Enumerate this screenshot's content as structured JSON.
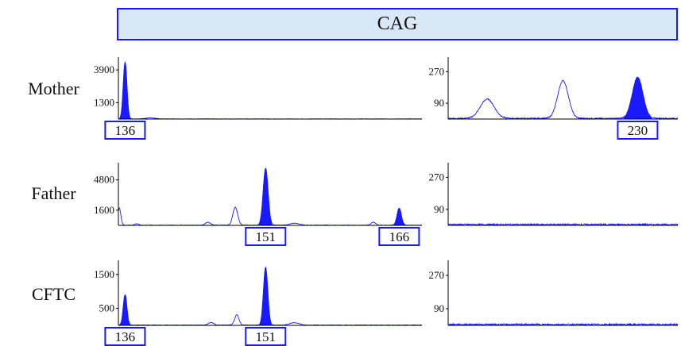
{
  "header": {
    "marker_label": "CAG"
  },
  "colors": {
    "trace": "#1a1aff",
    "band_fill": "#d9e8f6",
    "axis": "#000000"
  },
  "rows": [
    {
      "sample": "Mother"
    },
    {
      "sample": "Father"
    },
    {
      "sample": "CFTC"
    }
  ],
  "chart_data": [
    {
      "type": "area",
      "sample": "Mother",
      "panel": "left",
      "yticks": [
        3900,
        1300
      ],
      "ylim": [
        0,
        4600
      ],
      "xlim": [
        0,
        100
      ],
      "peaks": [
        {
          "x": 2.2,
          "height": 4500,
          "width": 0.6,
          "filled": true
        },
        {
          "x": 10.5,
          "height": 80,
          "width": 1.6,
          "filled": false
        }
      ],
      "baseline_noise": 20,
      "allele_labels": [
        {
          "x": 2.2,
          "label": "136"
        }
      ]
    },
    {
      "type": "area",
      "sample": "Mother",
      "panel": "right",
      "yticks": [
        270,
        90
      ],
      "ylim": [
        0,
        330
      ],
      "xlim": [
        0,
        100
      ],
      "peaks": [
        {
          "x": 17,
          "height": 110,
          "width": 3,
          "filled": false
        },
        {
          "x": 50,
          "height": 215,
          "width": 2.3,
          "filled": false
        },
        {
          "x": 82.5,
          "height": 235,
          "width": 2.3,
          "filled": true
        }
      ],
      "baseline_noise": 6,
      "allele_labels": [
        {
          "x": 82.5,
          "label": "230"
        }
      ]
    },
    {
      "type": "area",
      "sample": "Father",
      "panel": "left",
      "yticks": [
        4800,
        1600
      ],
      "ylim": [
        0,
        6200
      ],
      "xlim": [
        0,
        100
      ],
      "peaks": [
        {
          "x": 0.3,
          "height": 1800,
          "width": 0.5,
          "filled": false
        },
        {
          "x": 6,
          "height": 150,
          "width": 0.6,
          "filled": false
        },
        {
          "x": 29.5,
          "height": 320,
          "width": 0.8,
          "filled": false
        },
        {
          "x": 38.5,
          "height": 1900,
          "width": 0.8,
          "filled": false
        },
        {
          "x": 48.5,
          "height": 6000,
          "width": 0.8,
          "filled": true
        },
        {
          "x": 58,
          "height": 200,
          "width": 1.5,
          "filled": false
        },
        {
          "x": 84,
          "height": 320,
          "width": 0.7,
          "filled": false
        },
        {
          "x": 92.5,
          "height": 1800,
          "width": 0.7,
          "filled": true
        }
      ],
      "baseline_noise": 40,
      "allele_labels": [
        {
          "x": 48.5,
          "label": "151"
        },
        {
          "x": 92.5,
          "label": "166"
        }
      ]
    },
    {
      "type": "area",
      "sample": "Father",
      "panel": "right",
      "yticks": [
        270,
        90
      ],
      "ylim": [
        0,
        330
      ],
      "xlim": [
        0,
        100
      ],
      "peaks": [],
      "baseline_noise": 8,
      "allele_labels": []
    },
    {
      "type": "area",
      "sample": "CFTC",
      "panel": "left",
      "yticks": [
        1500,
        500
      ],
      "ylim": [
        0,
        1800
      ],
      "xlim": [
        0,
        100
      ],
      "peaks": [
        {
          "x": 2.2,
          "height": 900,
          "width": 0.6,
          "filled": true
        },
        {
          "x": 30.5,
          "height": 80,
          "width": 0.8,
          "filled": false
        },
        {
          "x": 39,
          "height": 300,
          "width": 0.7,
          "filled": false
        },
        {
          "x": 48.5,
          "height": 1700,
          "width": 0.7,
          "filled": true
        },
        {
          "x": 58,
          "height": 70,
          "width": 1.5,
          "filled": false
        }
      ],
      "baseline_noise": 15,
      "allele_labels": [
        {
          "x": 2.2,
          "label": "136"
        },
        {
          "x": 48.5,
          "label": "151"
        }
      ]
    },
    {
      "type": "area",
      "sample": "CFTC",
      "panel": "right",
      "yticks": [
        270,
        90
      ],
      "ylim": [
        0,
        330
      ],
      "xlim": [
        0,
        100
      ],
      "peaks": [],
      "baseline_noise": 8,
      "allele_labels": []
    }
  ]
}
